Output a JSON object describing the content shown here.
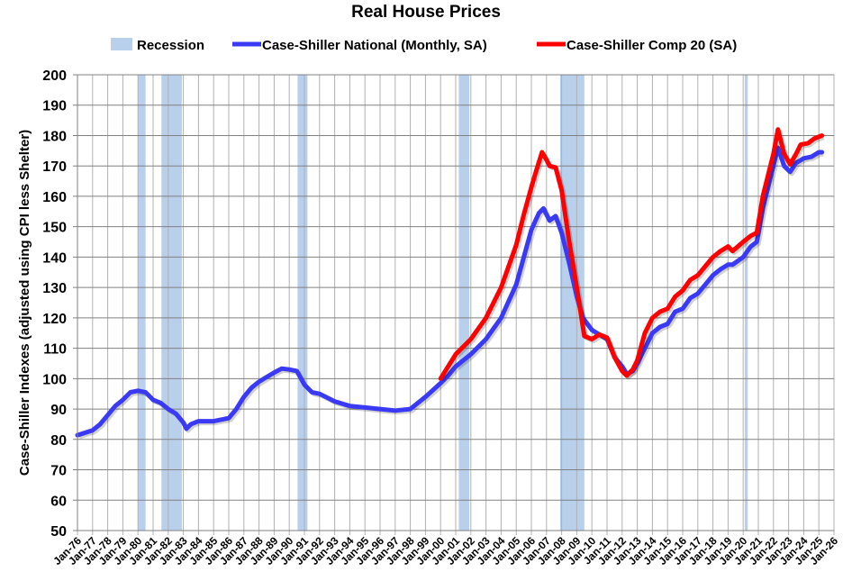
{
  "chart_data": {
    "type": "line",
    "title": "Real House Prices",
    "xlabel": "",
    "ylabel": "Case-Shiller Indexes (adjusted using CPI less Shelter)",
    "ylim": [
      50,
      200
    ],
    "yticks": [
      50,
      60,
      70,
      80,
      90,
      100,
      110,
      120,
      130,
      140,
      150,
      160,
      170,
      180,
      190,
      200
    ],
    "xlim": [
      1976,
      2026
    ],
    "xticks": [
      "Jan-76",
      "Jan-77",
      "Jan-78",
      "Jan-79",
      "Jan-80",
      "Jan-81",
      "Jan-82",
      "Jan-83",
      "Jan-84",
      "Jan-85",
      "Jan-86",
      "Jan-87",
      "Jan-88",
      "Jan-89",
      "Jan-90",
      "Jan-91",
      "Jan-92",
      "Jan-93",
      "Jan-94",
      "Jan-95",
      "Jan-96",
      "Jan-97",
      "Jan-98",
      "Jan-99",
      "Jan-00",
      "Jan-01",
      "Jan-02",
      "Jan-03",
      "Jan-04",
      "Jan-05",
      "Jan-06",
      "Jan-07",
      "Jan-08",
      "Jan-09",
      "Jan-10",
      "Jan-11",
      "Jan-12",
      "Jan-13",
      "Jan-14",
      "Jan-15",
      "Jan-16",
      "Jan-17",
      "Jan-18",
      "Jan-19",
      "Jan-20",
      "Jan-21",
      "Jan-22",
      "Jan-23",
      "Jan-24",
      "Jan-25",
      "Jan-26"
    ],
    "grid": true,
    "legend_placement": "top",
    "recession": {
      "name": "Recession",
      "color": "#b8d0ec",
      "periods": [
        [
          1980.0,
          1980.5
        ],
        [
          1981.55,
          1982.9
        ],
        [
          1990.55,
          1991.2
        ],
        [
          2001.2,
          2001.9
        ],
        [
          2007.9,
          2009.5
        ],
        [
          2020.1,
          2020.3
        ]
      ]
    },
    "series": [
      {
        "name": "Case-Shiller National (Monthly, SA)",
        "color": "#3a3af5",
        "points": [
          [
            1976,
            81.4
          ],
          [
            1977,
            83
          ],
          [
            1977.5,
            85
          ],
          [
            1978,
            88
          ],
          [
            1978.5,
            91
          ],
          [
            1979,
            93
          ],
          [
            1979.5,
            95.5
          ],
          [
            1980,
            96
          ],
          [
            1980.5,
            95.5
          ],
          [
            1981,
            93
          ],
          [
            1981.5,
            92
          ],
          [
            1982,
            90
          ],
          [
            1982.5,
            88.5
          ],
          [
            1983,
            85.5
          ],
          [
            1983.2,
            83.5
          ],
          [
            1983.5,
            85
          ],
          [
            1984,
            86
          ],
          [
            1985,
            86
          ],
          [
            1986,
            87
          ],
          [
            1986.5,
            90
          ],
          [
            1987,
            94
          ],
          [
            1987.5,
            97
          ],
          [
            1988,
            99
          ],
          [
            1988.5,
            100.5
          ],
          [
            1989,
            102
          ],
          [
            1989.5,
            103.3
          ],
          [
            1990,
            103
          ],
          [
            1990.5,
            102.5
          ],
          [
            1991,
            98
          ],
          [
            1991.5,
            95.5
          ],
          [
            1992,
            95
          ],
          [
            1993,
            92.5
          ],
          [
            1994,
            91
          ],
          [
            1995,
            90.5
          ],
          [
            1996,
            90
          ],
          [
            1997,
            89.5
          ],
          [
            1998,
            90
          ],
          [
            1998.5,
            92
          ],
          [
            1999,
            94
          ],
          [
            2000,
            98.5
          ],
          [
            2000.5,
            101
          ],
          [
            2001,
            104
          ],
          [
            2002,
            108
          ],
          [
            2003,
            113
          ],
          [
            2004,
            120
          ],
          [
            2005,
            131
          ],
          [
            2005.5,
            140
          ],
          [
            2006,
            149
          ],
          [
            2006.5,
            154.5
          ],
          [
            2006.8,
            156
          ],
          [
            2007.2,
            152
          ],
          [
            2007.6,
            153.5
          ],
          [
            2008,
            148
          ],
          [
            2008.5,
            138
          ],
          [
            2009,
            127
          ],
          [
            2009.4,
            120
          ],
          [
            2010,
            116
          ],
          [
            2010.5,
            114.5
          ],
          [
            2011,
            113
          ],
          [
            2011.5,
            107
          ],
          [
            2012,
            104
          ],
          [
            2012.3,
            101.5
          ],
          [
            2012.7,
            102.5
          ],
          [
            2013,
            105
          ],
          [
            2013.5,
            110
          ],
          [
            2014,
            115
          ],
          [
            2014.5,
            117
          ],
          [
            2015,
            118
          ],
          [
            2015.5,
            122
          ],
          [
            2016,
            123
          ],
          [
            2016.5,
            126.5
          ],
          [
            2017,
            128
          ],
          [
            2017.5,
            131
          ],
          [
            2018,
            134
          ],
          [
            2018.5,
            136
          ],
          [
            2019,
            137.5
          ],
          [
            2019.3,
            137.5
          ],
          [
            2020,
            140
          ],
          [
            2020.5,
            143.5
          ],
          [
            2020.9,
            145
          ],
          [
            2021.3,
            156
          ],
          [
            2021.8,
            166
          ],
          [
            2022.3,
            176
          ],
          [
            2022.7,
            170
          ],
          [
            2023.1,
            168
          ],
          [
            2023.5,
            171
          ],
          [
            2024,
            172.5
          ],
          [
            2024.5,
            173
          ],
          [
            2025,
            174.5
          ],
          [
            2025.2,
            174.5
          ]
        ]
      },
      {
        "name": "Case-Shiller Comp 20  (SA)",
        "color": "#ff0000",
        "points": [
          [
            2000,
            100
          ],
          [
            2000.5,
            104
          ],
          [
            2001,
            108
          ],
          [
            2002,
            113
          ],
          [
            2003,
            120
          ],
          [
            2004,
            130
          ],
          [
            2005,
            144
          ],
          [
            2005.5,
            154
          ],
          [
            2006,
            163
          ],
          [
            2006.3,
            168
          ],
          [
            2006.7,
            174.5
          ],
          [
            2007,
            172
          ],
          [
            2007.2,
            170
          ],
          [
            2007.6,
            169.5
          ],
          [
            2008,
            162
          ],
          [
            2008.5,
            145
          ],
          [
            2009,
            130
          ],
          [
            2009.5,
            114
          ],
          [
            2010,
            113
          ],
          [
            2010.5,
            114.5
          ],
          [
            2011,
            113.5
          ],
          [
            2011.5,
            107
          ],
          [
            2012,
            102.5
          ],
          [
            2012.3,
            101
          ],
          [
            2012.7,
            103
          ],
          [
            2013,
            106
          ],
          [
            2013.5,
            115
          ],
          [
            2014,
            120
          ],
          [
            2014.5,
            122
          ],
          [
            2015,
            123
          ],
          [
            2015.5,
            127
          ],
          [
            2016,
            129
          ],
          [
            2016.5,
            132.5
          ],
          [
            2017,
            134
          ],
          [
            2017.5,
            137
          ],
          [
            2018,
            140
          ],
          [
            2018.5,
            142
          ],
          [
            2019,
            143.5
          ],
          [
            2019.3,
            142
          ],
          [
            2020,
            145
          ],
          [
            2020.5,
            147
          ],
          [
            2020.9,
            148
          ],
          [
            2021.3,
            160
          ],
          [
            2021.8,
            170
          ],
          [
            2022,
            174
          ],
          [
            2022.3,
            182
          ],
          [
            2022.7,
            174
          ],
          [
            2023.1,
            170.5
          ],
          [
            2023.5,
            174
          ],
          [
            2023.8,
            177
          ],
          [
            2024.3,
            177.5
          ],
          [
            2024.7,
            179
          ],
          [
            2025.2,
            180
          ]
        ]
      }
    ]
  }
}
